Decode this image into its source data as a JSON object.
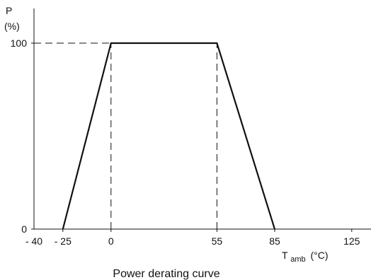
{
  "chart_data": {
    "type": "line",
    "title": "Power derating curve",
    "ylabel_main": "P",
    "ylabel_unit": "(%)",
    "xlabel_main": "T",
    "xlabel_sub": "amb",
    "xlabel_unit": "(°C)",
    "xlim": [
      -40,
      135
    ],
    "ylim": [
      0,
      115
    ],
    "x_ticks": [
      {
        "value": -40,
        "label": "- 40"
      },
      {
        "value": -25,
        "label": "- 25"
      },
      {
        "value": 0,
        "label": "0"
      },
      {
        "value": 55,
        "label": "55"
      },
      {
        "value": 85,
        "label": "85"
      },
      {
        "value": 125,
        "label": "125"
      }
    ],
    "y_ticks": [
      {
        "value": 0,
        "label": "0"
      },
      {
        "value": 100,
        "label": "100"
      }
    ],
    "series": [
      {
        "x": [
          -25,
          0,
          55,
          85
        ],
        "y": [
          0,
          100,
          100,
          0
        ]
      }
    ],
    "reference_lines": [
      {
        "orientation": "horizontal",
        "from": [
          -40,
          100
        ],
        "to": [
          0,
          100
        ],
        "style": "dashed"
      },
      {
        "orientation": "vertical",
        "from": [
          0,
          0
        ],
        "to": [
          0,
          100
        ],
        "style": "dashed"
      },
      {
        "orientation": "vertical",
        "from": [
          55,
          0
        ],
        "to": [
          55,
          100
        ],
        "style": "dashed"
      }
    ],
    "grid": false,
    "line_color": "#111111"
  }
}
